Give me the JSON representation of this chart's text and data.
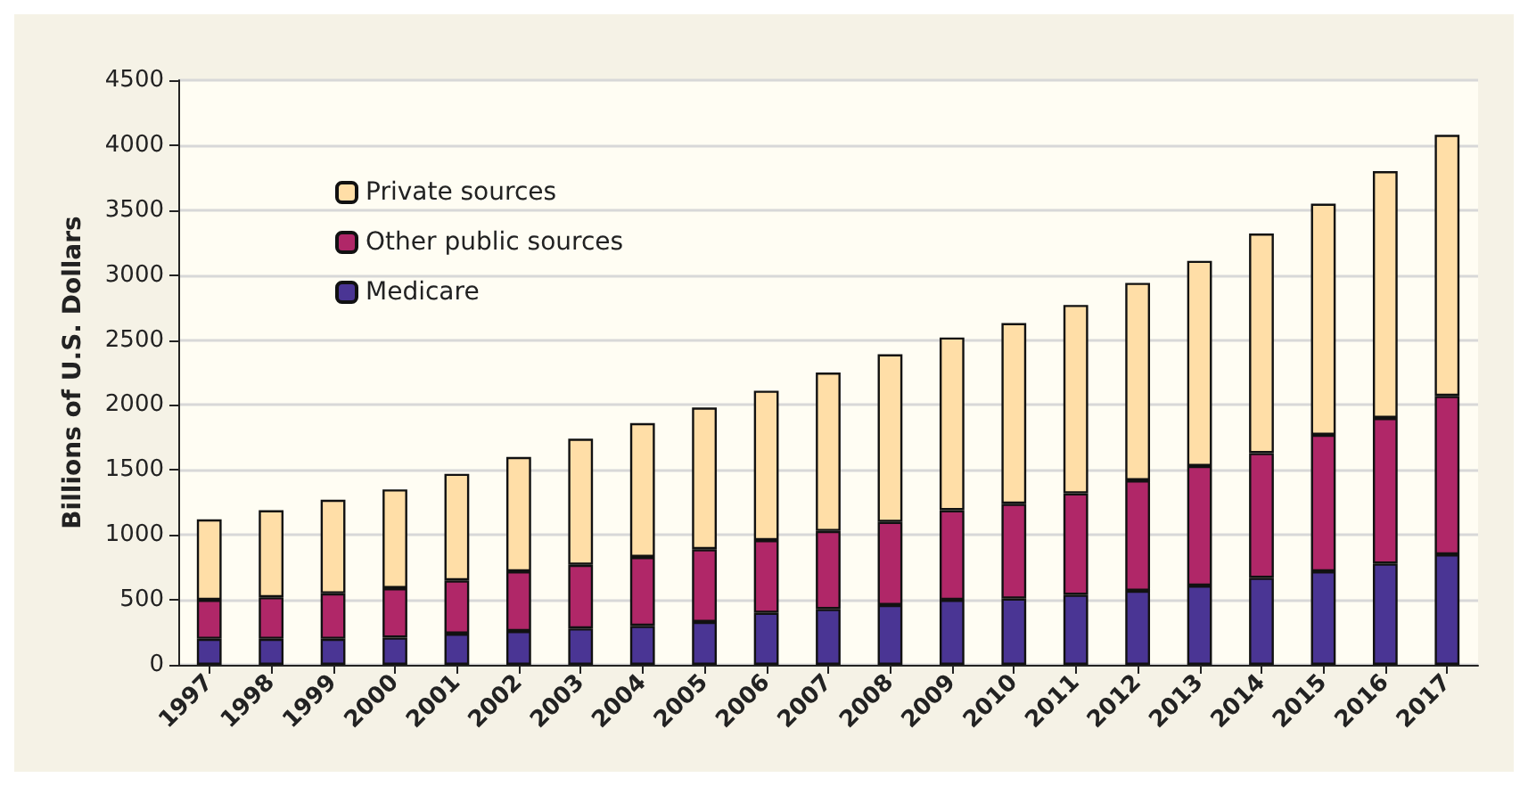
{
  "chart_data": {
    "type": "bar",
    "stacked": true,
    "ylabel": "Billions of U.S. Dollars",
    "categories": [
      "1997",
      "1998",
      "1999",
      "2000",
      "2001",
      "2002",
      "2003",
      "2004",
      "2005",
      "2006",
      "2007",
      "2008",
      "2009",
      "2010",
      "2011",
      "2012",
      "2013",
      "2014",
      "2015",
      "2016",
      "2017"
    ],
    "series": [
      {
        "name": "Medicare",
        "color": "#4a3594",
        "values": [
          200,
          200,
          200,
          210,
          240,
          260,
          280,
          300,
          330,
          400,
          430,
          460,
          500,
          510,
          540,
          570,
          610,
          670,
          720,
          780,
          850
        ]
      },
      {
        "name": "Other public sources",
        "color": "#b02768",
        "values": [
          300,
          320,
          350,
          380,
          410,
          460,
          490,
          530,
          560,
          560,
          600,
          640,
          690,
          730,
          780,
          850,
          920,
          960,
          1050,
          1120,
          1220
        ]
      },
      {
        "name": "Private sources",
        "color": "#ffdea7",
        "values": [
          620,
          670,
          720,
          760,
          820,
          880,
          970,
          1030,
          1090,
          1150,
          1220,
          1290,
          1330,
          1390,
          1450,
          1520,
          1580,
          1690,
          1780,
          1900,
          2010
        ]
      }
    ],
    "ylim": [
      0,
      4500
    ],
    "yticks": [
      0,
      500,
      1000,
      1500,
      2000,
      2500,
      3000,
      3500,
      4000,
      4500
    ],
    "grid": "y",
    "legend": "top left"
  }
}
